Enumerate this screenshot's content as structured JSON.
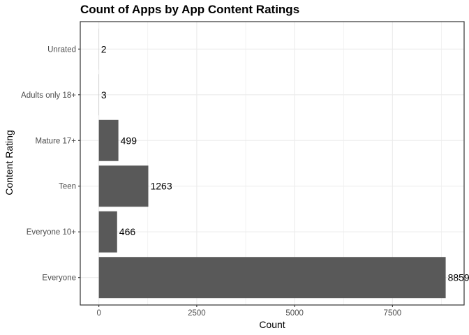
{
  "chart_data": {
    "type": "bar",
    "orientation": "horizontal",
    "title": "Count of Apps by App Content Ratings",
    "xlabel": "Count",
    "ylabel": "Content Rating",
    "categories": [
      "Everyone",
      "Everyone 10+",
      "Teen",
      "Mature 17+",
      "Adults only 18+",
      "Unrated"
    ],
    "values": [
      8859,
      466,
      1263,
      499,
      3,
      2
    ],
    "data_labels": [
      "8859",
      "466",
      "1263",
      "499",
      "3",
      "2"
    ],
    "xlim": [
      -475,
      9330
    ],
    "x_ticks": [
      0,
      2500,
      5000,
      7500
    ],
    "x_tick_labels": [
      "0",
      "2500",
      "5000",
      "7500"
    ],
    "grid": true,
    "bar_color": "#595959",
    "grid_color": "#ebebeb",
    "panel_border_color": "#333333"
  }
}
